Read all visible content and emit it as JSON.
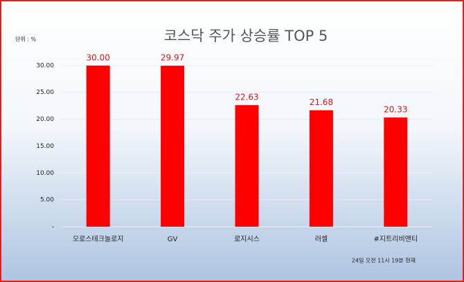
{
  "chart_data": {
    "type": "bar",
    "title": "코스닥 주가 상승률 TOP 5",
    "unit_label": "단위 : %",
    "categories": [
      "오로스테크놀로지",
      "GV",
      "로지시스",
      "러셀",
      "#지트리비앤티"
    ],
    "values": [
      30.0,
      29.97,
      22.63,
      21.68,
      20.33
    ],
    "value_labels": [
      "30.00",
      "29.97",
      "22.63",
      "21.68",
      "20.33"
    ],
    "color": "#ff0000",
    "label_color": "#e01010",
    "ylim": [
      0,
      35
    ],
    "yticks": [
      {
        "value": 0,
        "label": "-"
      },
      {
        "value": 5,
        "label": "5.00"
      },
      {
        "value": 10,
        "label": "10.00"
      },
      {
        "value": 15,
        "label": "15.00"
      },
      {
        "value": 20,
        "label": "20.00"
      },
      {
        "value": 25,
        "label": "25.00"
      },
      {
        "value": 30,
        "label": "30.00"
      }
    ],
    "grid": true,
    "annotation": "24일 오전 11시 19분 현재"
  }
}
